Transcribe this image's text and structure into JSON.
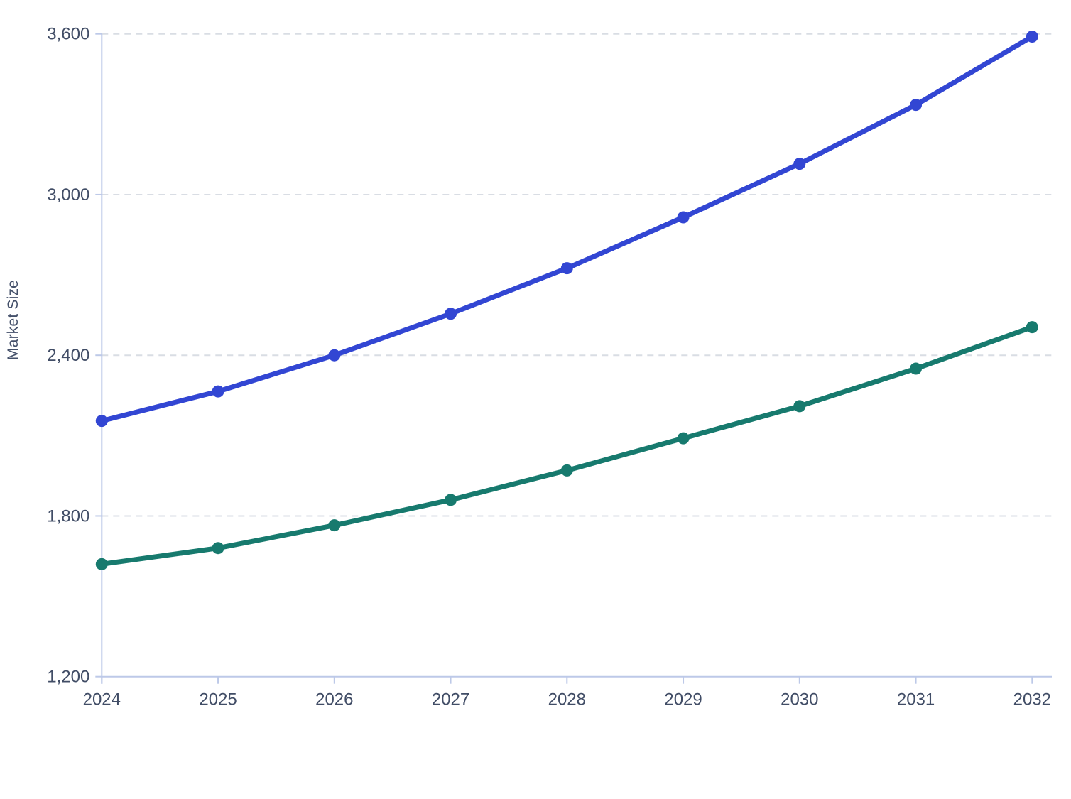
{
  "chart_data": {
    "type": "line",
    "title": "",
    "ylabel": "Market Size",
    "xlabel": "",
    "x": [
      2024,
      2025,
      2026,
      2027,
      2028,
      2029,
      2030,
      2031,
      2032
    ],
    "x_labels": [
      "2024",
      "2025",
      "2026",
      "2027",
      "2028",
      "2029",
      "2030",
      "2031",
      "2032"
    ],
    "series": [
      {
        "id": "series-blue",
        "color": "#3246d3",
        "values": [
          2155,
          2265,
          2400,
          2555,
          2725,
          2915,
          3115,
          3335,
          3590
        ]
      },
      {
        "id": "series-teal",
        "color": "#177a6e",
        "values": [
          1620,
          1680,
          1765,
          1860,
          1970,
          2090,
          2210,
          2350,
          2505
        ]
      }
    ],
    "ylim": [
      1200,
      3600
    ],
    "yticks": [
      1200,
      1800,
      2400,
      3000,
      3600
    ],
    "ytick_labels": [
      "1,200",
      "1,800",
      "2,400",
      "3,000",
      "3,600"
    ],
    "grid": "horizontal-dashed",
    "legend": "none",
    "colors": {
      "axis_line": "#bdc9e8",
      "gridline": "#d9dde4",
      "tick_text": "#414d66",
      "background": "#ffffff"
    }
  }
}
